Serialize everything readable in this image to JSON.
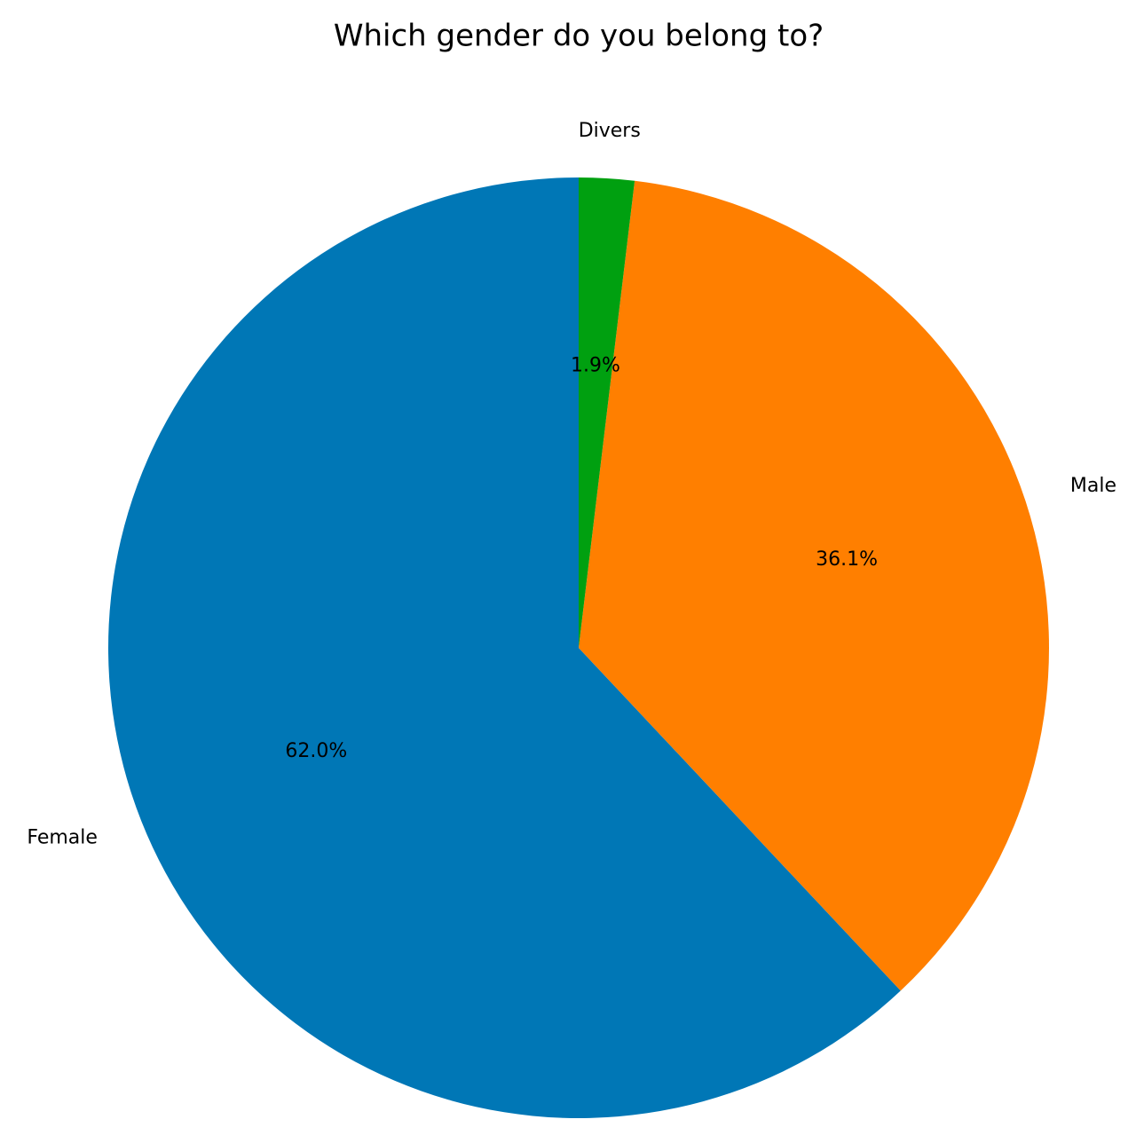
{
  "chart_data": {
    "type": "pie",
    "title": "Which gender do you belong to?",
    "categories": [
      "Female",
      "Male",
      "Divers"
    ],
    "values": [
      62.0,
      36.1,
      1.9
    ],
    "value_labels": [
      "62.0%",
      "36.1%",
      "1.9%"
    ],
    "colors": [
      "#0077b6",
      "#ff7f00",
      "#00a010"
    ]
  }
}
